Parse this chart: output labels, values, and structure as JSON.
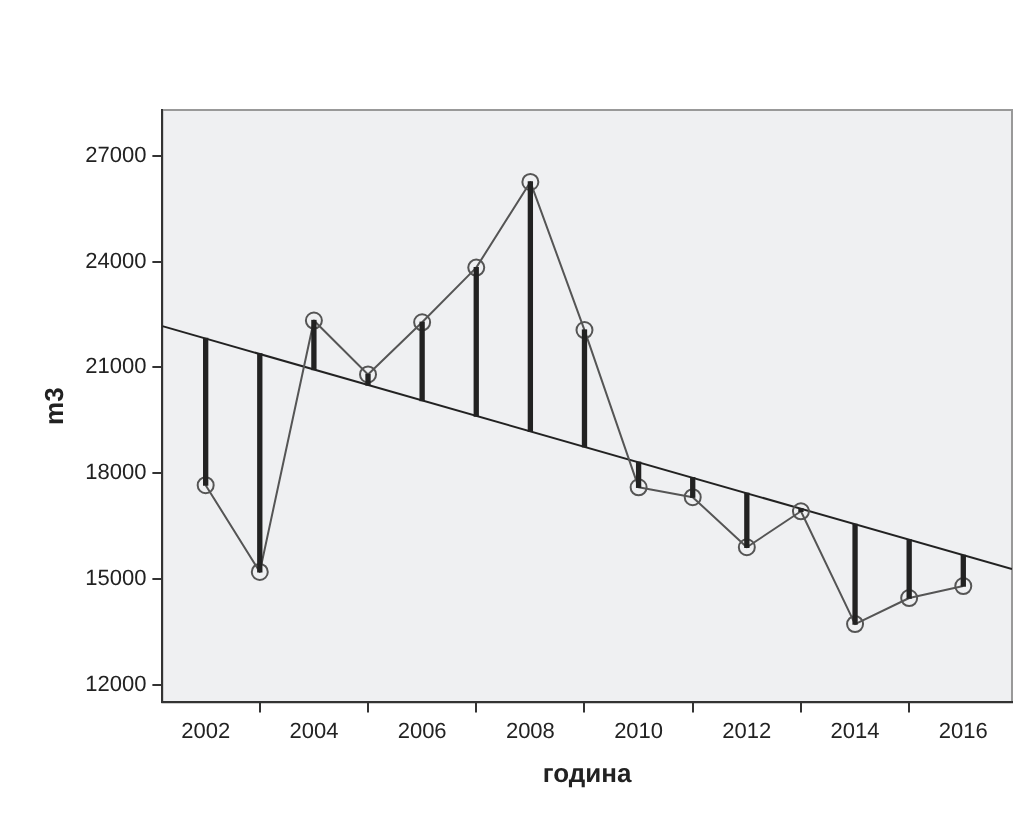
{
  "chart_data": {
    "type": "line",
    "xlabel": "година",
    "ylabel": "m3",
    "xlim": [
      2001.2,
      2016.9
    ],
    "xticks": [
      2002,
      2004,
      2006,
      2008,
      2010,
      2012,
      2014,
      2016
    ],
    "ylim": [
      11500,
      28300
    ],
    "yticks": [
      12000,
      15000,
      18000,
      21000,
      24000,
      27000
    ],
    "grid": false,
    "legend": false,
    "series": [
      {
        "type": "bar",
        "color": "#222222",
        "x": [
          2002,
          2003,
          2004,
          2005,
          2006,
          2007,
          2008,
          2009,
          2010,
          2011,
          2012,
          2013,
          2014,
          2015,
          2016
        ],
        "base": [
          21820,
          21380,
          20940,
          20500,
          20060,
          19620,
          19190,
          18750,
          18310,
          17870,
          17430,
          16990,
          16550,
          16110,
          15670
        ],
        "values": [
          -4160,
          -6180,
          1390,
          300,
          2220,
          4210,
          7070,
          3310,
          -710,
          -550,
          -1530,
          -70,
          -2830,
          -1650,
          -870
        ]
      },
      {
        "color": "#555555",
        "marker": "circle",
        "x": [
          2002,
          2003,
          2004,
          2005,
          2006,
          2007,
          2008,
          2009,
          2010,
          2011,
          2012,
          2013,
          2014,
          2015,
          2016
        ],
        "values": [
          17660,
          15200,
          22330,
          20800,
          22280,
          23830,
          26260,
          22060,
          17600,
          17320,
          15900,
          16920,
          13720,
          14460,
          14800
        ]
      },
      {
        "color": "#222222",
        "marker": "none",
        "x": [
          2001.2,
          2016.9
        ],
        "values": [
          22170,
          15280
        ]
      }
    ]
  }
}
